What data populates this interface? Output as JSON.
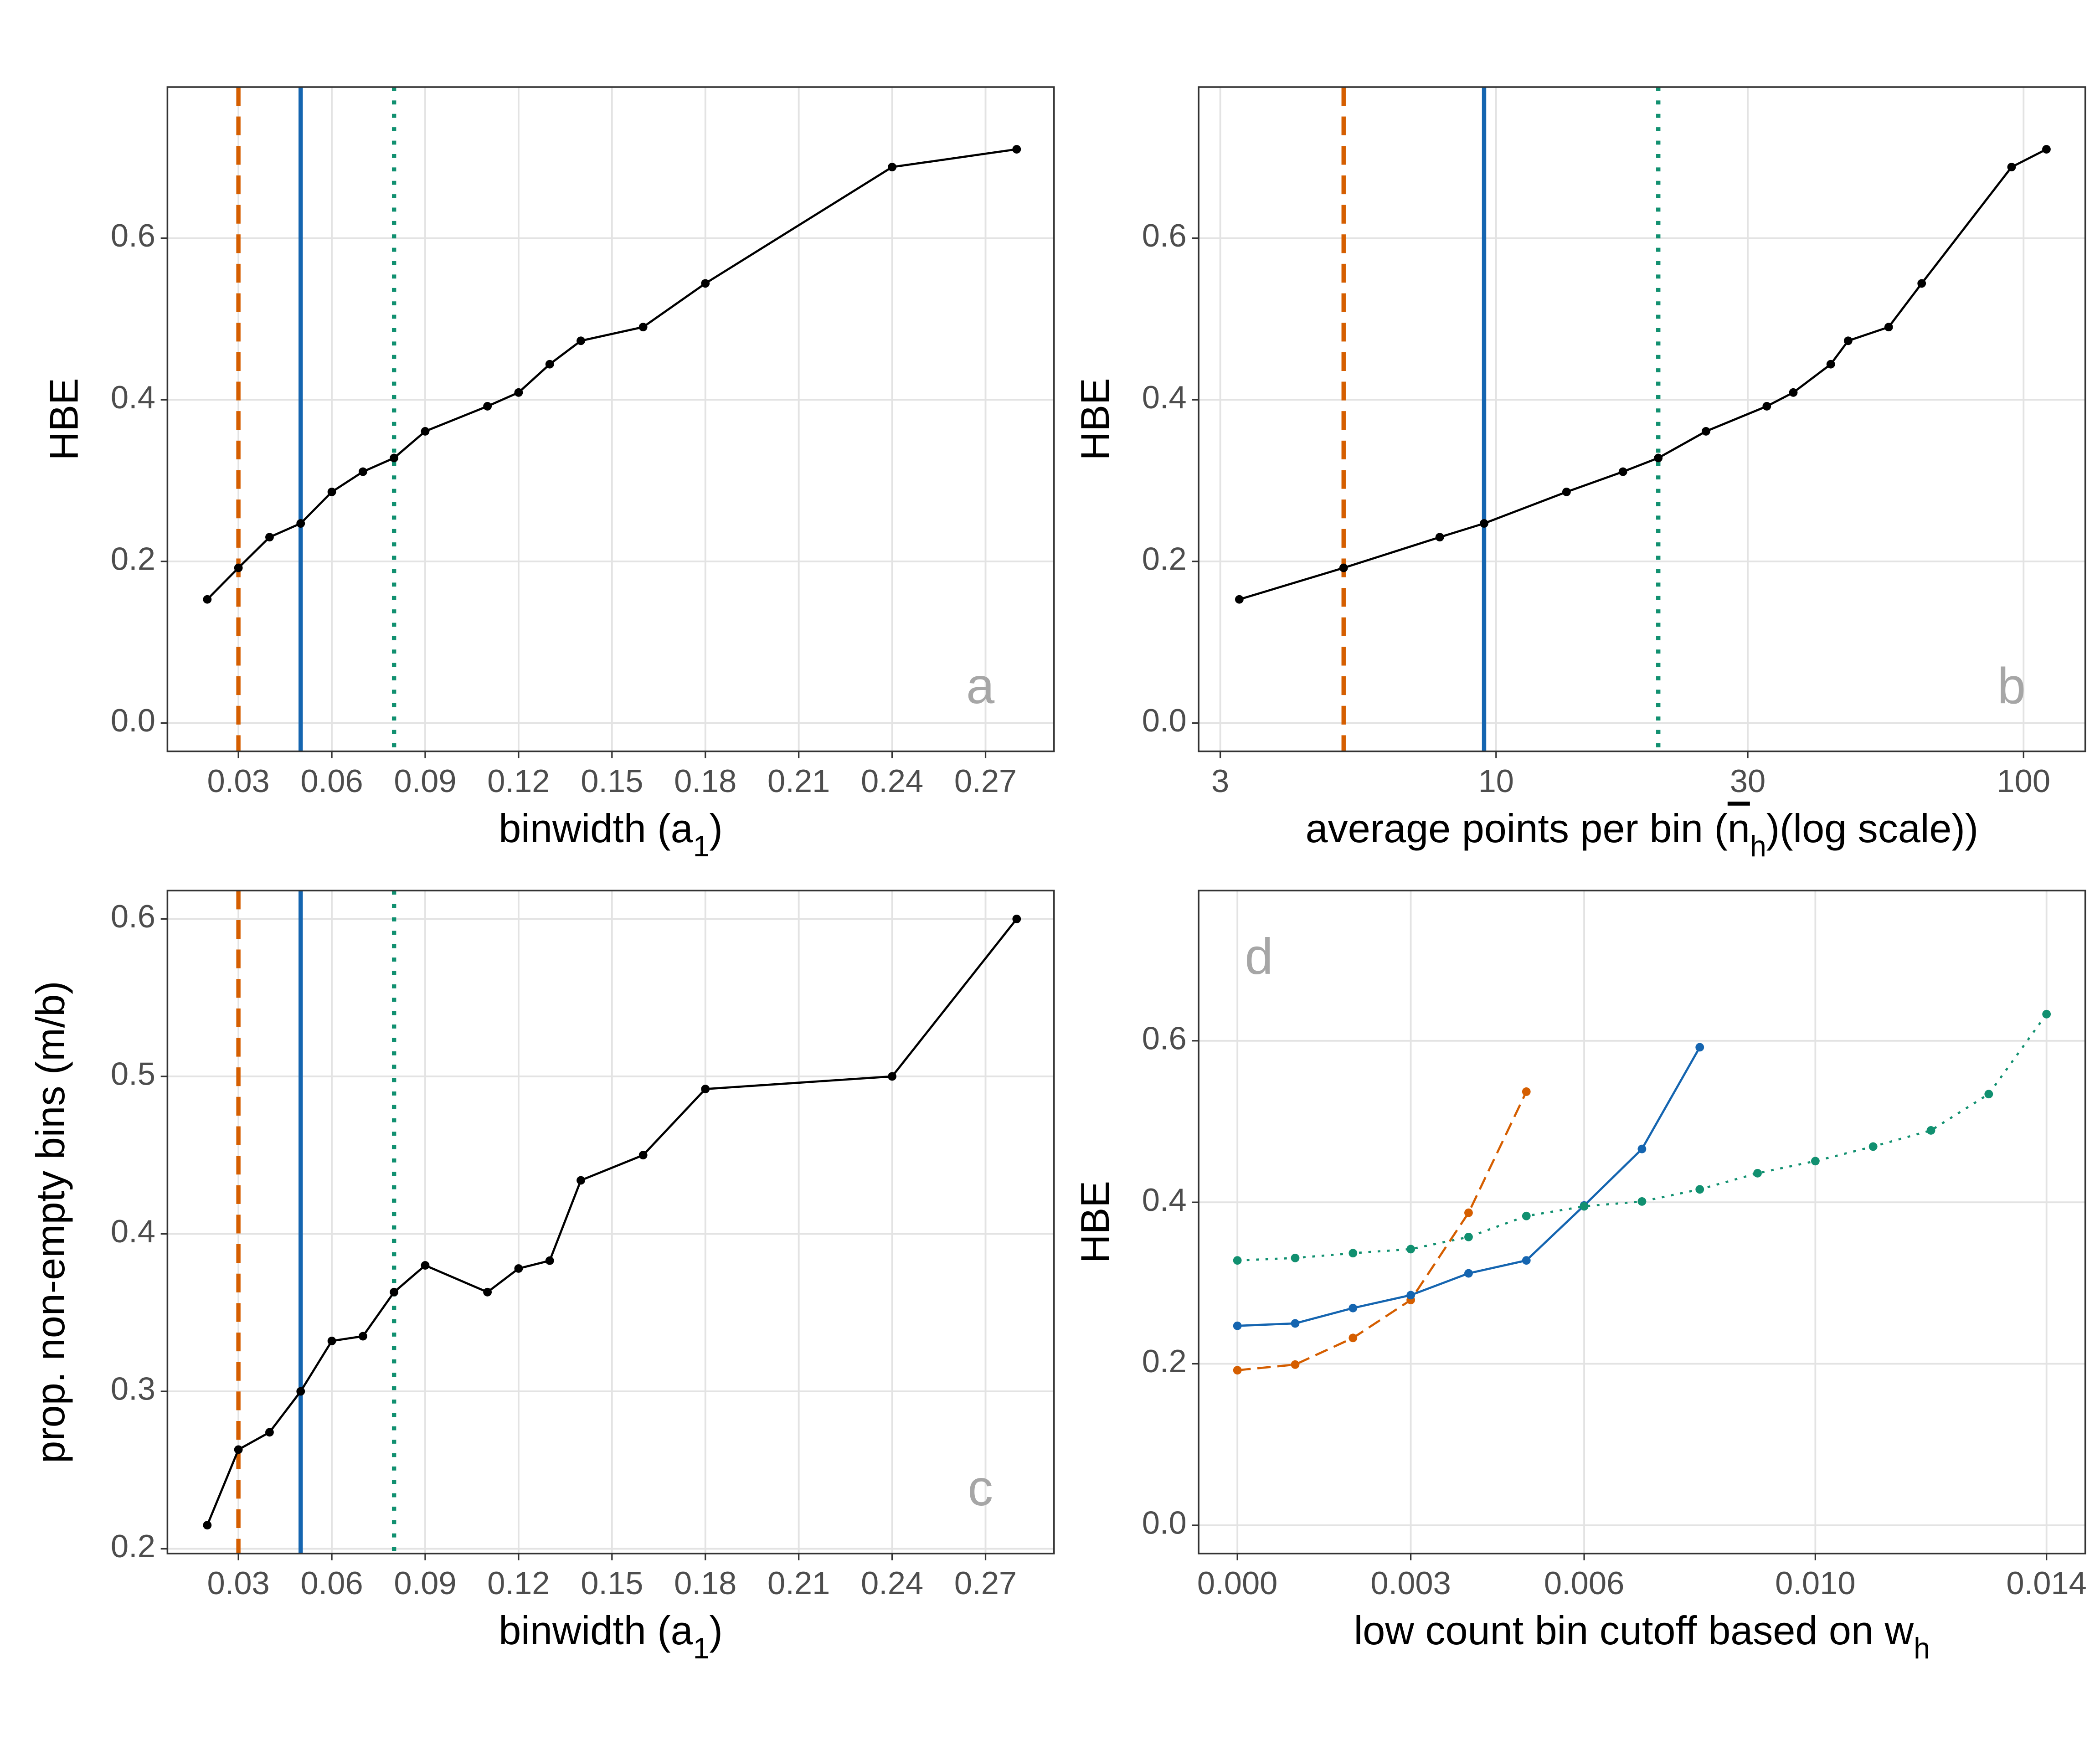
{
  "chart_data": [
    {
      "type": "line",
      "annotation": "a",
      "annotation_corner": "bottom-right",
      "xlabel": [
        {
          "text": "binwidth (a"
        },
        {
          "text": "1",
          "sub": true
        },
        {
          "text": ")"
        }
      ],
      "ylabel": "HBE",
      "x": [
        0.02,
        0.03,
        0.04,
        0.05,
        0.06,
        0.07,
        0.08,
        0.09,
        0.11,
        0.12,
        0.13,
        0.14,
        0.16,
        0.18,
        0.24,
        0.28
      ],
      "values": [
        0.153,
        0.192,
        0.23,
        0.247,
        0.286,
        0.311,
        0.328,
        0.361,
        0.392,
        0.409,
        0.444,
        0.473,
        0.49,
        0.544,
        0.688,
        0.71
      ],
      "color": "#000000",
      "vlines": [
        {
          "x": 0.03,
          "color": "#D55E00",
          "linestyle": "dashed"
        },
        {
          "x": 0.05,
          "color": "#1565B0",
          "linestyle": "solid"
        },
        {
          "x": 0.08,
          "color": "#119070",
          "linestyle": "dotted"
        }
      ],
      "xlim": [
        0.0072,
        0.292
      ],
      "xticks": [
        0.03,
        0.06,
        0.09,
        0.12,
        0.15,
        0.18,
        0.21,
        0.24,
        0.27
      ],
      "ylim": [
        -0.035,
        0.787
      ],
      "yticks": [
        {
          "value": 0,
          "label": "0.0"
        },
        0.2,
        0.4,
        0.6
      ],
      "grid": true
    },
    {
      "type": "line",
      "annotation": "b",
      "annotation_corner": "bottom-right",
      "xlabel": [
        {
          "text": "average points per bin ("
        },
        {
          "text": "n",
          "over": true
        },
        {
          "text": "h",
          "sub": true
        },
        {
          "text": ")(log scale))"
        }
      ],
      "ylabel": "HBE",
      "xscale": "log",
      "x": [
        3.26,
        5.14,
        7.82,
        9.49,
        13.6,
        17.4,
        20.3,
        25.0,
        32.6,
        36.6,
        43.1,
        46.5,
        55.5,
        64.1,
        94.9,
        110.5
      ],
      "values": [
        0.153,
        0.192,
        0.23,
        0.247,
        0.286,
        0.311,
        0.328,
        0.361,
        0.392,
        0.409,
        0.444,
        0.473,
        0.49,
        0.544,
        0.688,
        0.71
      ],
      "color": "#000000",
      "vlines": [
        {
          "x": 5.14,
          "color": "#D55E00",
          "linestyle": "dashed"
        },
        {
          "x": 9.49,
          "color": "#1565B0",
          "linestyle": "solid"
        },
        {
          "x": 20.3,
          "color": "#119070",
          "linestyle": "dotted"
        }
      ],
      "xlim": [
        2.73,
        130.9
      ],
      "xticks": [
        3,
        10,
        30,
        100
      ],
      "ylim": [
        -0.035,
        0.787
      ],
      "yticks": [
        {
          "value": 0,
          "label": "0.0"
        },
        0.2,
        0.4,
        0.6
      ],
      "grid": true
    },
    {
      "type": "line",
      "annotation": "c",
      "annotation_corner": "bottom-right",
      "xlabel": [
        {
          "text": "binwidth (a"
        },
        {
          "text": "1",
          "sub": true
        },
        {
          "text": ")"
        }
      ],
      "ylabel": "prop. non-empty bins (m/b)",
      "x": [
        0.02,
        0.03,
        0.04,
        0.05,
        0.06,
        0.07,
        0.08,
        0.09,
        0.11,
        0.12,
        0.13,
        0.14,
        0.16,
        0.18,
        0.24,
        0.28
      ],
      "values": [
        0.215,
        0.263,
        0.274,
        0.3,
        0.332,
        0.335,
        0.363,
        0.38,
        0.363,
        0.378,
        0.383,
        0.434,
        0.45,
        0.492,
        0.5,
        0.6
      ],
      "color": "#000000",
      "vlines": [
        {
          "x": 0.03,
          "color": "#D55E00",
          "linestyle": "dashed"
        },
        {
          "x": 0.05,
          "color": "#1565B0",
          "linestyle": "solid"
        },
        {
          "x": 0.08,
          "color": "#119070",
          "linestyle": "dotted"
        }
      ],
      "xlim": [
        0.0072,
        0.292
      ],
      "xticks": [
        0.03,
        0.06,
        0.09,
        0.12,
        0.15,
        0.18,
        0.21,
        0.24,
        0.27
      ],
      "ylim": [
        0.197,
        0.618
      ],
      "yticks": [
        0.2,
        0.3,
        0.4,
        0.5,
        0.6
      ],
      "grid": true
    },
    {
      "type": "line",
      "annotation": "d",
      "annotation_corner": "top-left",
      "xlabel": [
        {
          "text": "low count bin cutoff based on w"
        },
        {
          "text": "h",
          "sub": true
        }
      ],
      "ylabel": "HBE",
      "series": [
        {
          "color": "#D55E00",
          "linestyle": "dashed",
          "x": [
            0,
            0.001,
            0.002,
            0.003,
            0.004,
            0.005
          ],
          "values": [
            0.192,
            0.199,
            0.232,
            0.279,
            0.387,
            0.537
          ]
        },
        {
          "color": "#1565B0",
          "linestyle": "solid",
          "x": [
            0,
            0.001,
            0.002,
            0.003,
            0.004,
            0.005,
            0.006,
            0.007,
            0.008
          ],
          "values": [
            0.247,
            0.25,
            0.269,
            0.285,
            0.312,
            0.328,
            0.396,
            0.466,
            0.592
          ]
        },
        {
          "color": "#119070",
          "linestyle": "dotted",
          "x": [
            0,
            0.001,
            0.002,
            0.003,
            0.004,
            0.005,
            0.006,
            0.007,
            0.008,
            0.009,
            0.01,
            0.011,
            0.012,
            0.013,
            0.014
          ],
          "values": [
            0.328,
            0.331,
            0.337,
            0.342,
            0.357,
            0.383,
            0.395,
            0.401,
            0.416,
            0.436,
            0.451,
            0.469,
            0.489,
            0.534,
            0.633
          ]
        }
      ],
      "xlim": [
        -0.00067,
        0.01467
      ],
      "xticks": [
        {
          "value": 0,
          "label": "0.000"
        },
        0.003,
        0.006,
        {
          "value": 0.01,
          "label": "0.010"
        },
        0.014
      ],
      "ylim": [
        -0.035,
        0.786
      ],
      "yticks": [
        {
          "value": 0,
          "label": "0.0"
        },
        0.2,
        0.4,
        0.6
      ],
      "grid": true
    }
  ]
}
